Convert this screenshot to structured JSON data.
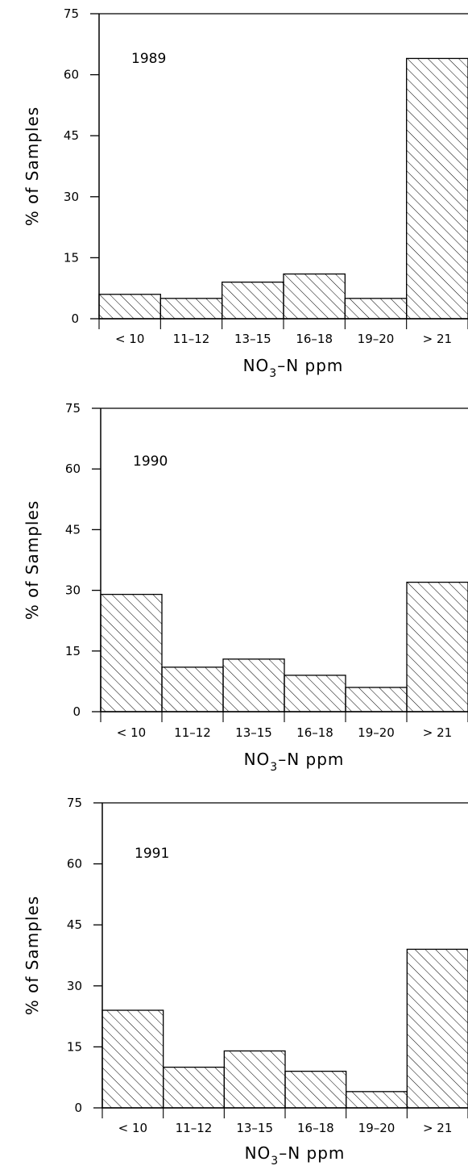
{
  "chart_data": [
    {
      "type": "bar",
      "annotation": "1989",
      "xlabel": "NO3-N ppm",
      "xlabel_main": "NO",
      "xlabel_sub": "3",
      "xlabel_rest": "–N ppm",
      "ylabel": "% of Samples",
      "ylim": [
        0,
        75
      ],
      "yticks": [
        "0",
        "15",
        "30",
        "45",
        "60",
        "75"
      ],
      "categories": [
        "< 10",
        "11–12",
        "13–15",
        "16–18",
        "19–20",
        "> 21"
      ],
      "values": [
        6,
        5,
        9,
        11,
        5,
        64
      ],
      "bar_fill": "hatched",
      "grid": false,
      "legend": "none"
    },
    {
      "type": "bar",
      "annotation": "1990",
      "xlabel": "NO3-N ppm",
      "xlabel_main": "NO",
      "xlabel_sub": "3",
      "xlabel_rest": "–N ppm",
      "ylabel": "% of Samples",
      "ylim": [
        0,
        75
      ],
      "yticks": [
        "0",
        "15",
        "30",
        "45",
        "60",
        "75"
      ],
      "categories": [
        "< 10",
        "11–12",
        "13–15",
        "16–18",
        "19–20",
        "> 21"
      ],
      "values": [
        29,
        11,
        13,
        9,
        6,
        32
      ],
      "bar_fill": "hatched",
      "grid": false,
      "legend": "none"
    },
    {
      "type": "bar",
      "annotation": "1991",
      "xlabel": "NO3-N ppm",
      "xlabel_main": "NO",
      "xlabel_sub": "3",
      "xlabel_rest": "–N ppm",
      "ylabel": "% of Samples",
      "ylim": [
        0,
        75
      ],
      "yticks": [
        "0",
        "15",
        "30",
        "45",
        "60",
        "75"
      ],
      "categories": [
        "< 10",
        "11–12",
        "13–15",
        "16–18",
        "19–20",
        "> 21"
      ],
      "values": [
        24,
        10,
        14,
        9,
        4,
        39
      ],
      "bar_fill": "hatched",
      "grid": false,
      "legend": "none"
    }
  ]
}
